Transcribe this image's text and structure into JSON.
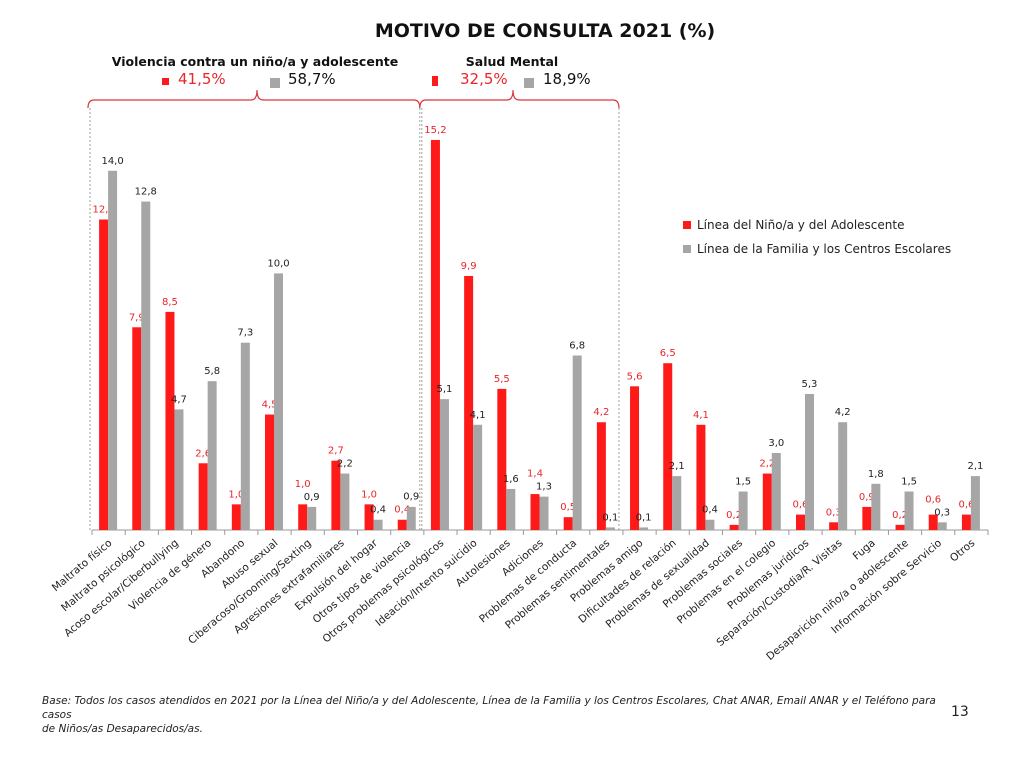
{
  "chart_data": {
    "type": "bar",
    "title": "MOTIVO DE CONSULTA 2021 (%)",
    "xlabel": "",
    "ylabel": "",
    "ylim": [
      0,
      16
    ],
    "grid": false,
    "legend_position": "right",
    "categories": [
      "Maltrato físico",
      "Maltrato psicológico",
      "Acoso escolar/Ciberbullying",
      "Violencia de género",
      "Abandono",
      "Abuso sexual",
      "Ciberacoso/Grooming/Sexting",
      "Agresiones extrafamiliares",
      "Expulsión del hogar",
      "Otros tipos de violencia",
      "Otros problemas psicológicos",
      "Ideación/Intento suicidio",
      "Autolesiones",
      "Adiciones",
      "Problemas de conducta",
      "Problemas sentimentales",
      "Problemas amigo",
      "Dificultades de relación",
      "Problemas de sexualidad",
      "Problemas sociales",
      "Problemas en el colegio",
      "Problemas jurídicos",
      "Separación/Custodia/R. Visitas",
      "Fuga",
      "Desaparición niño/a o adolescente",
      "Información sobre Servicio",
      "Otros"
    ],
    "series": [
      {
        "name": "Línea del Niño/a y del Adolescente",
        "color": "#ff1a1a",
        "label_color": "#e8262b",
        "values": [
          12.1,
          7.9,
          8.5,
          2.6,
          1.0,
          4.5,
          1.0,
          2.7,
          1.0,
          0.4,
          15.2,
          9.9,
          5.5,
          1.4,
          0.5,
          4.2,
          5.6,
          6.5,
          4.1,
          0.2,
          2.2,
          0.6,
          0.3,
          0.9,
          0.2,
          0.6,
          0.6
        ]
      },
      {
        "name": "Línea de la Familia y los Centros Escolares",
        "color": "#a6a6a6",
        "label_color": "#222222",
        "values": [
          14.0,
          12.8,
          4.7,
          5.8,
          7.3,
          10.0,
          0.9,
          2.2,
          0.4,
          0.9,
          5.1,
          4.1,
          1.6,
          1.3,
          6.8,
          0.1,
          0.1,
          2.1,
          0.4,
          1.5,
          3.0,
          5.3,
          4.2,
          1.8,
          1.5,
          0.3,
          2.1
        ]
      }
    ],
    "groups": [
      {
        "title": "Violencia contra un niño/a y adolescente",
        "red_pct": "41,5%",
        "gray_pct": "58,7%",
        "range": [
          0,
          9
        ]
      },
      {
        "title": "Salud Mental",
        "red_pct": "32,5%",
        "gray_pct": "18,9%",
        "range": [
          10,
          15
        ]
      }
    ]
  },
  "footnote": [
    "Base: Todos los casos atendidos en 2021 por la Línea del Niño/a y del Adolescente, Línea de la Familia y los Centros Escolares, Chat ANAR, Email ANAR y el Teléfono para casos",
    "de Niños/as Desaparecidos/as."
  ],
  "page_number": "13"
}
